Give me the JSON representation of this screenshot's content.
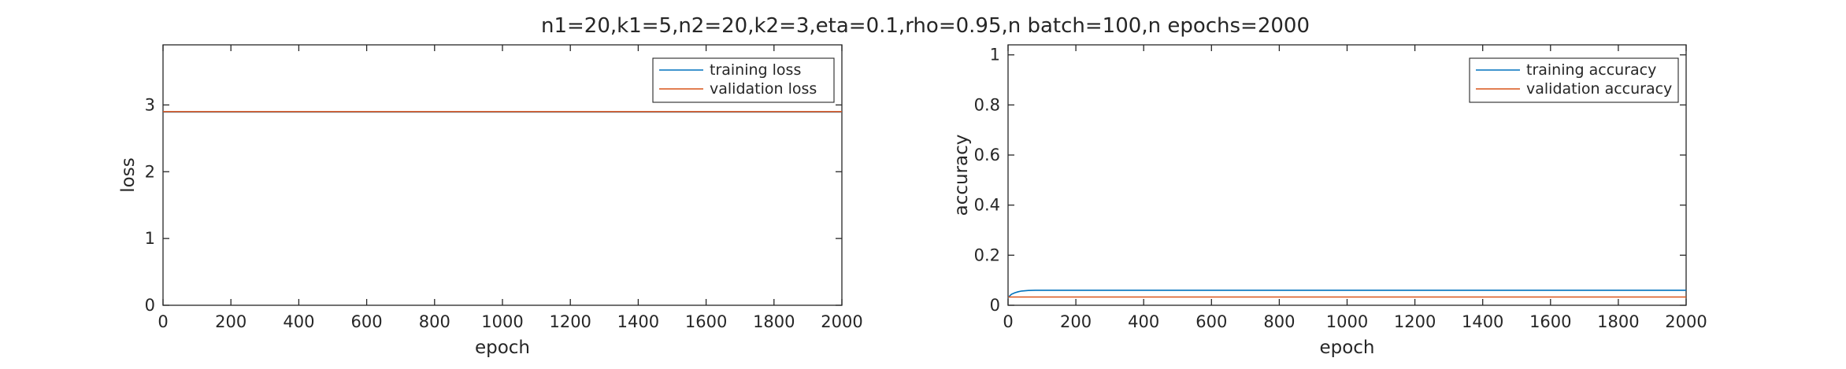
{
  "figure_title": "n1=20,k1=5,n2=20,k2=3,eta=0.1,rho=0.95,n batch=100,n epochs=2000",
  "chart_data": [
    {
      "type": "line",
      "title": "",
      "xlabel": "epoch",
      "ylabel": "loss",
      "xlim": [
        0,
        2000
      ],
      "ylim": [
        0,
        3.9
      ],
      "xticks": [
        0,
        200,
        400,
        600,
        800,
        1000,
        1200,
        1400,
        1600,
        1800,
        2000
      ],
      "yticks": [
        0,
        1,
        2,
        3
      ],
      "legend_position": "top-right",
      "series": [
        {
          "name": "training loss",
          "color": "#0072bd",
          "x": [
            0,
            2000
          ],
          "y": [
            2.895,
            2.895
          ]
        },
        {
          "name": "validation loss",
          "color": "#d95319",
          "x": [
            0,
            2000
          ],
          "y": [
            2.9,
            2.9
          ]
        }
      ]
    },
    {
      "type": "line",
      "title": "",
      "xlabel": "epoch",
      "ylabel": "accuracy",
      "xlim": [
        0,
        2000
      ],
      "ylim": [
        0,
        1.04
      ],
      "xticks": [
        0,
        200,
        400,
        600,
        800,
        1000,
        1200,
        1400,
        1600,
        1800,
        2000
      ],
      "yticks": [
        0,
        0.2,
        0.4,
        0.6,
        0.8,
        1
      ],
      "legend_position": "top-right",
      "series": [
        {
          "name": "training accuracy",
          "color": "#0072bd",
          "x": [
            0,
            5,
            10,
            20,
            30,
            40,
            60,
            80,
            100,
            150,
            2000
          ],
          "y": [
            0.03,
            0.038,
            0.044,
            0.05,
            0.054,
            0.057,
            0.059,
            0.06,
            0.06,
            0.06,
            0.06
          ]
        },
        {
          "name": "validation accuracy",
          "color": "#d95319",
          "x": [
            0,
            2000
          ],
          "y": [
            0.033,
            0.033
          ]
        }
      ]
    }
  ]
}
